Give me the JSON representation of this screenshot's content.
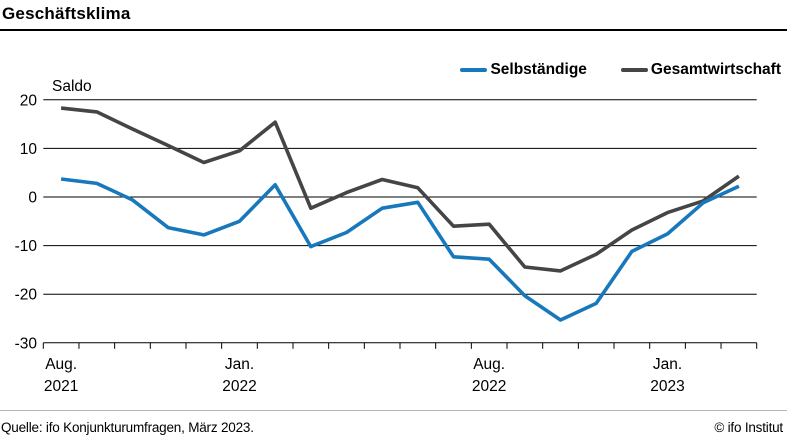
{
  "header": {
    "title": "Geschäftsklima"
  },
  "legend": {
    "items": [
      {
        "label": "Selbständige",
        "color": "#1878bc"
      },
      {
        "label": "Gesamtwirtschaft",
        "color": "#454545"
      }
    ]
  },
  "y_axis": {
    "label": "Saldo",
    "ticks": [
      20,
      10,
      0,
      -10,
      -20,
      -30
    ]
  },
  "x_axis": {
    "labels": [
      {
        "month": "Aug.",
        "year": "2021",
        "slot": 0
      },
      {
        "month": "Jan.",
        "year": "2022",
        "slot": 5
      },
      {
        "month": "Aug.",
        "year": "2022",
        "slot": 12
      },
      {
        "month": "Jan.",
        "year": "2023",
        "slot": 17
      }
    ]
  },
  "footer": {
    "source": "Quelle: ifo Konjunkturumfragen, März 2023.",
    "copyright": "© ifo Institut"
  },
  "chart_data": {
    "type": "line",
    "title": "Geschäftsklima",
    "ylabel": "Saldo",
    "ylim": [
      -30,
      20
    ],
    "grid": "horizontal",
    "legend_position": "top-right",
    "x": [
      "Aug. 2021",
      "Sep. 2021",
      "Okt. 2021",
      "Nov. 2021",
      "Dez. 2021",
      "Jan. 2022",
      "Feb. 2022",
      "März 2022",
      "Apr. 2022",
      "Mai 2022",
      "Juni 2022",
      "Juli 2022",
      "Aug. 2022",
      "Sep. 2022",
      "Okt. 2022",
      "Nov. 2022",
      "Dez. 2022",
      "Jan. 2023",
      "Feb. 2023",
      "März 2023"
    ],
    "series": [
      {
        "name": "Selbständige",
        "color": "#1878bc",
        "values": [
          3.7,
          2.8,
          -0.6,
          -6.3,
          -7.8,
          -5.0,
          2.5,
          -10.2,
          -7.3,
          -2.3,
          -1.1,
          -12.3,
          -12.8,
          -20.3,
          -25.3,
          -21.9,
          -11.2,
          -7.6,
          -1.2,
          2.2
        ]
      },
      {
        "name": "Gesamtwirtschaft",
        "color": "#454545",
        "values": [
          18.3,
          17.5,
          14.0,
          10.6,
          7.1,
          9.5,
          15.4,
          -2.3,
          0.9,
          3.6,
          1.9,
          -6.0,
          -5.6,
          -14.4,
          -15.2,
          -11.8,
          -6.8,
          -3.2,
          -0.8,
          4.3
        ]
      }
    ]
  }
}
